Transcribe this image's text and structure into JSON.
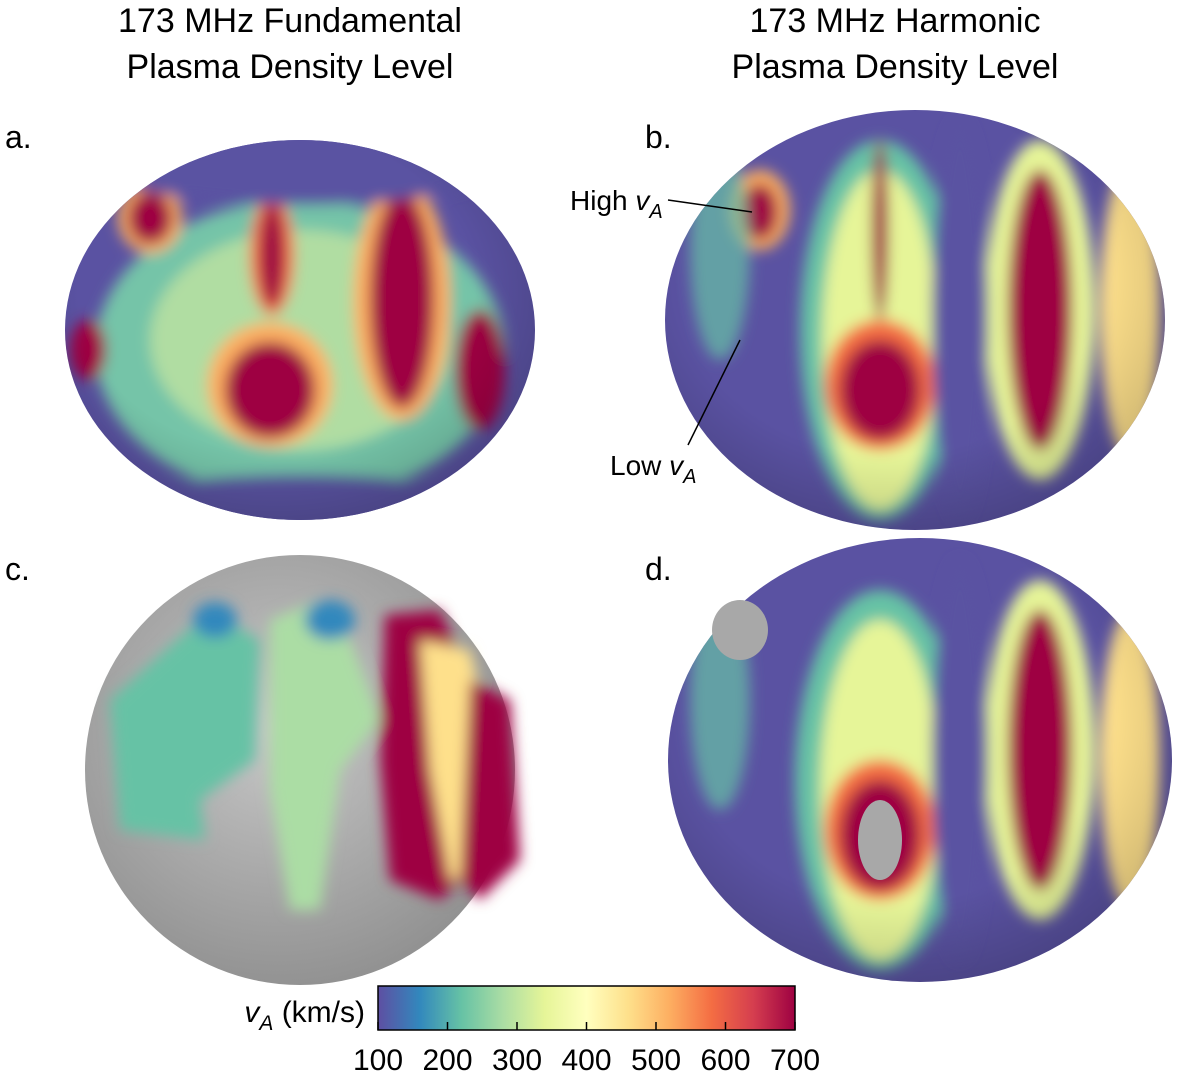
{
  "columns": [
    {
      "title_line1": "173 MHz Fundamental",
      "title_line2": "Plasma Density Level"
    },
    {
      "title_line1": "173 MHz Harmonic",
      "title_line2": "Plasma Density Level"
    }
  ],
  "panels": [
    {
      "label": "a."
    },
    {
      "label": "b."
    },
    {
      "label": "c."
    },
    {
      "label": "d."
    }
  ],
  "annotations": [
    {
      "text": "High",
      "symbol": "v",
      "subscript": "A"
    },
    {
      "text": "Low",
      "symbol": "v",
      "subscript": "A"
    }
  ],
  "colorbar": {
    "symbol": "v",
    "subscript": "A",
    "unit": "(km/s)",
    "lim": [
      100,
      700
    ],
    "ticks": [
      100,
      200,
      300,
      400,
      500,
      600,
      700
    ],
    "colormap": [
      "#5e4fa2",
      "#3288bd",
      "#66c2a5",
      "#abdda4",
      "#e6f598",
      "#ffffbf",
      "#fee08b",
      "#fdae61",
      "#f46d43",
      "#d53e4f",
      "#9e0142"
    ]
  }
}
